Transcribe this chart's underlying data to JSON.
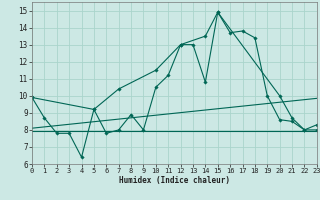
{
  "title": "",
  "xlabel": "Humidex (Indice chaleur)",
  "bg_color": "#cce8e4",
  "grid_color": "#aad4cc",
  "line_color": "#006655",
  "xlim": [
    0,
    23
  ],
  "ylim": [
    6,
    15.5
  ],
  "xticks": [
    0,
    1,
    2,
    3,
    4,
    5,
    6,
    7,
    8,
    9,
    10,
    11,
    12,
    13,
    14,
    15,
    16,
    17,
    18,
    19,
    20,
    21,
    22,
    23
  ],
  "yticks": [
    6,
    7,
    8,
    9,
    10,
    11,
    12,
    13,
    14,
    15
  ],
  "line1_x": [
    0,
    1,
    2,
    3,
    4,
    5,
    6,
    7,
    8,
    9,
    10,
    11,
    12,
    13,
    14,
    15,
    16,
    17,
    18,
    19,
    20,
    21,
    22,
    23
  ],
  "line1_y": [
    9.9,
    8.7,
    7.8,
    7.8,
    6.4,
    9.2,
    7.8,
    8.0,
    8.9,
    8.0,
    10.5,
    11.2,
    13.0,
    13.0,
    10.8,
    14.9,
    13.7,
    13.8,
    13.4,
    10.0,
    8.6,
    8.5,
    8.0,
    8.0
  ],
  "line2_x": [
    0,
    5,
    7,
    10,
    12,
    14,
    15,
    20,
    21,
    22,
    23
  ],
  "line2_y": [
    9.9,
    9.2,
    10.4,
    11.5,
    13.0,
    13.5,
    14.9,
    10.0,
    8.7,
    8.0,
    8.3
  ],
  "line3_x": [
    0,
    23
  ],
  "line3_y": [
    7.95,
    7.95
  ],
  "line4_x": [
    0,
    23
  ],
  "line4_y": [
    8.1,
    9.85
  ]
}
